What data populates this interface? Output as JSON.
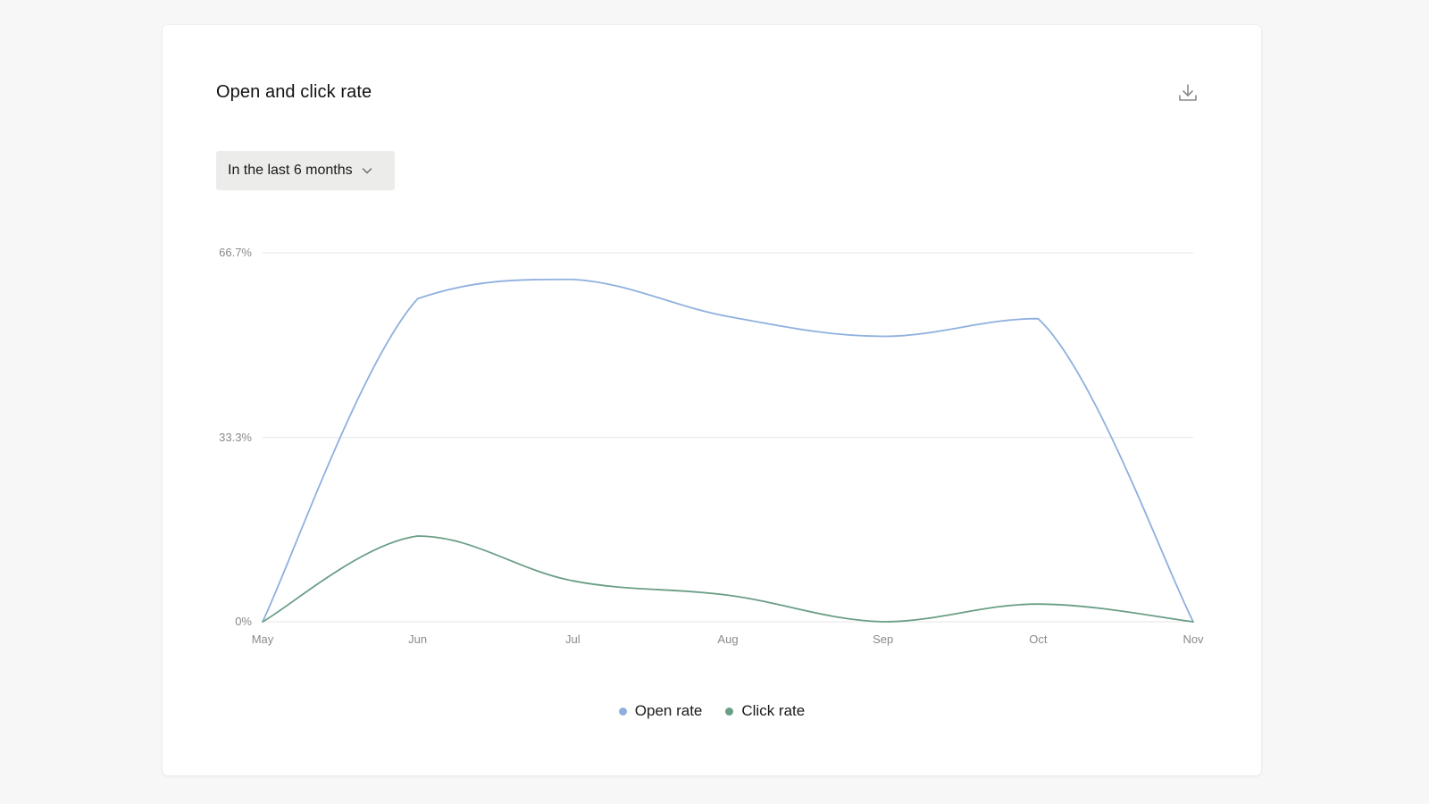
{
  "card": {
    "title": "Open and click rate",
    "download_icon": "download-icon"
  },
  "range_select": {
    "value": "In the last 6 months",
    "icon": "chevron-down-icon"
  },
  "colors": {
    "open_rate": "#8fb0de",
    "click_rate": "#6a9e86",
    "grid": "#e6e6e6",
    "axis_text": "#8a8a8a"
  },
  "chart_data": {
    "type": "line",
    "title": "Open and click rate",
    "categories": [
      "May",
      "Jun",
      "Jul",
      "Aug",
      "Sep",
      "Oct",
      "Nov"
    ],
    "y_ticks": [
      {
        "value": 0,
        "label": "0%"
      },
      {
        "value": 33.3,
        "label": "33.3%"
      },
      {
        "value": 66.7,
        "label": "66.7%"
      }
    ],
    "ylim": [
      0,
      66.7
    ],
    "grid": true,
    "legend_position": "bottom-center",
    "series": [
      {
        "name": "Open rate",
        "key": "open_rate",
        "values": [
          0,
          58.4,
          61.9,
          55.2,
          51.6,
          54.8,
          0
        ]
      },
      {
        "name": "Click rate",
        "key": "click_rate",
        "values": [
          0,
          15.5,
          7.4,
          4.8,
          0,
          3.2,
          0
        ]
      }
    ]
  }
}
